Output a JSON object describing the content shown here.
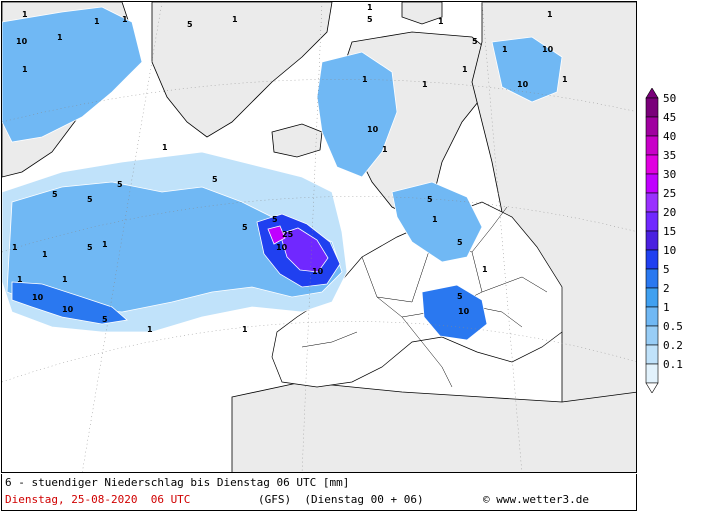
{
  "footer": {
    "line1": "6 - stuendiger Niederschlag bis Dienstag 06 UTC [mm]",
    "date": "Dienstag, 25-08-2020  06 UTC",
    "model": "(GFS)  (Dienstag 00 + 06)",
    "copyright": "© www.wetter3.de"
  },
  "legend": {
    "levels": [
      "50",
      "45",
      "40",
      "35",
      "30",
      "25",
      "20",
      "15",
      "10",
      "5",
      "2",
      "1",
      "0.5",
      "0.2",
      "0.1"
    ],
    "colors": [
      "#7a007a",
      "#a000a0",
      "#c800c8",
      "#e000e0",
      "#c000ff",
      "#9a30ff",
      "#7028ff",
      "#4a20e0",
      "#2040f0",
      "#2a78f0",
      "#40a0f0",
      "#70b8f4",
      "#98cdf6",
      "#c0e2fa",
      "#e2f2fc"
    ]
  },
  "map": {
    "contour_labels": [
      "10",
      "1",
      "1",
      "1",
      "5",
      "5",
      "5",
      "1",
      "1",
      "1",
      "10",
      "1",
      "1",
      "1",
      "5",
      "5",
      "5",
      "5",
      "1",
      "10",
      "1",
      "25",
      "10",
      "10",
      "10",
      "1",
      "5",
      "1",
      "1",
      "10",
      "5",
      "10",
      "1",
      "1",
      "1",
      "5",
      "10",
      "5",
      "5",
      "1",
      "1",
      "1",
      "1",
      "5",
      "5",
      "1",
      "1",
      "1",
      "1"
    ]
  }
}
